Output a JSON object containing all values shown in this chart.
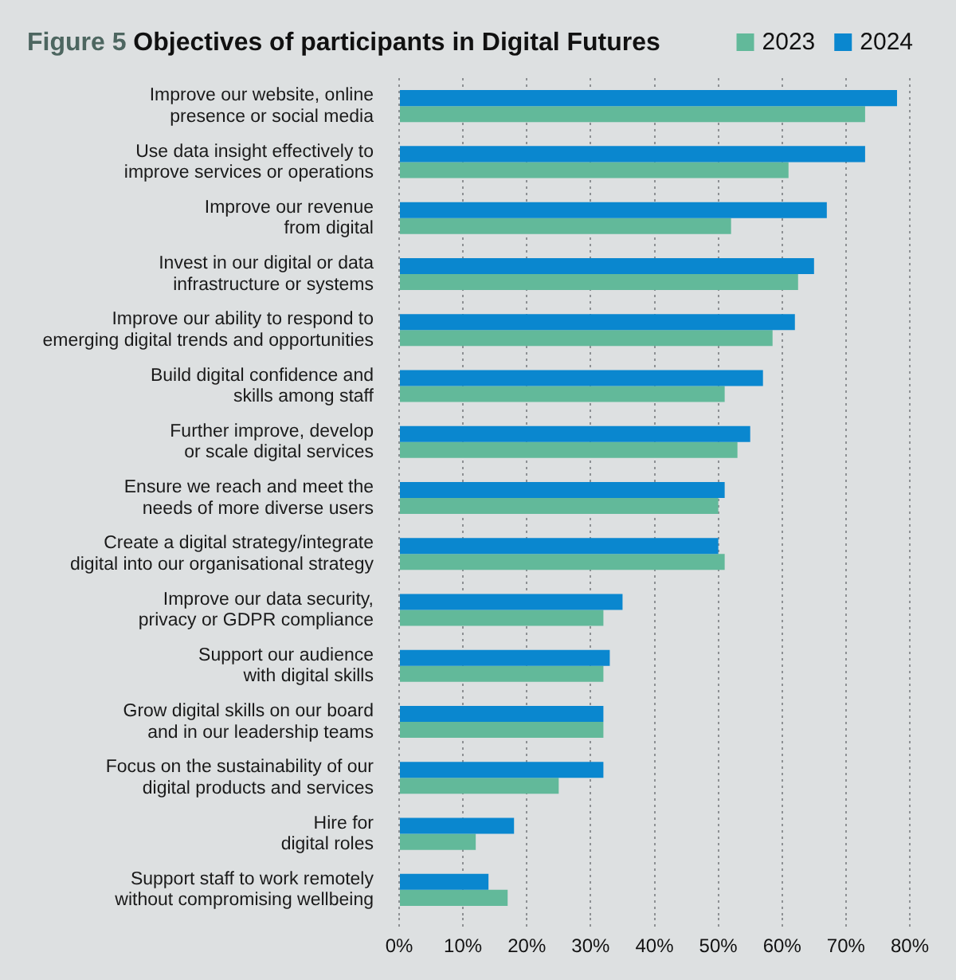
{
  "chart_data": {
    "type": "bar",
    "orientation": "horizontal",
    "title": "Figure 5 Objectives of participants in Digital Futures",
    "categories": [
      "Improve our website, online\npresence or social media",
      "Use data insight effectively to\nimprove services or operations",
      "Improve our revenue\nfrom digital",
      "Invest in our digital or data\ninfrastructure or systems",
      "Improve our ability to respond to\nemerging digital trends and opportunities",
      "Build digital confidence and\nskills among staff",
      "Further improve, develop\nor scale digital services",
      "Ensure we reach and meet the\nneeds of more diverse users",
      "Create a digital strategy/integrate\ndigital into our organisational strategy",
      "Improve our data security,\nprivacy or GDPR compliance",
      "Support our audience\nwith digital skills",
      "Grow digital skills on our board\nand in our leadership teams",
      "Focus on the sustainability of our\ndigital products and services",
      "Hire for\ndigital roles",
      "Support staff to work remotely\nwithout compromising wellbeing"
    ],
    "series": [
      {
        "name": "2023",
        "color": "#62b99a",
        "values": [
          73,
          61,
          52,
          62.5,
          58.5,
          51,
          53,
          50,
          51,
          32,
          32,
          32,
          25,
          12,
          17
        ]
      },
      {
        "name": "2024",
        "color": "#0a87cf",
        "values": [
          78,
          73,
          67,
          65,
          62,
          57,
          55,
          51,
          50,
          35,
          33,
          32,
          32,
          18,
          14
        ]
      }
    ],
    "xlim": [
      0,
      80
    ],
    "xticks": [
      {
        "value": 0,
        "label": "0%"
      },
      {
        "value": 10,
        "label": "10%"
      },
      {
        "value": 20,
        "label": "20%"
      },
      {
        "value": 30,
        "label": "30%"
      },
      {
        "value": 40,
        "label": "40%"
      },
      {
        "value": 50,
        "label": "50%"
      },
      {
        "value": 60,
        "label": "60%"
      },
      {
        "value": 70,
        "label": "70%"
      },
      {
        "value": 80,
        "label": "80%"
      }
    ],
    "grid": "x",
    "legend": "top right"
  }
}
